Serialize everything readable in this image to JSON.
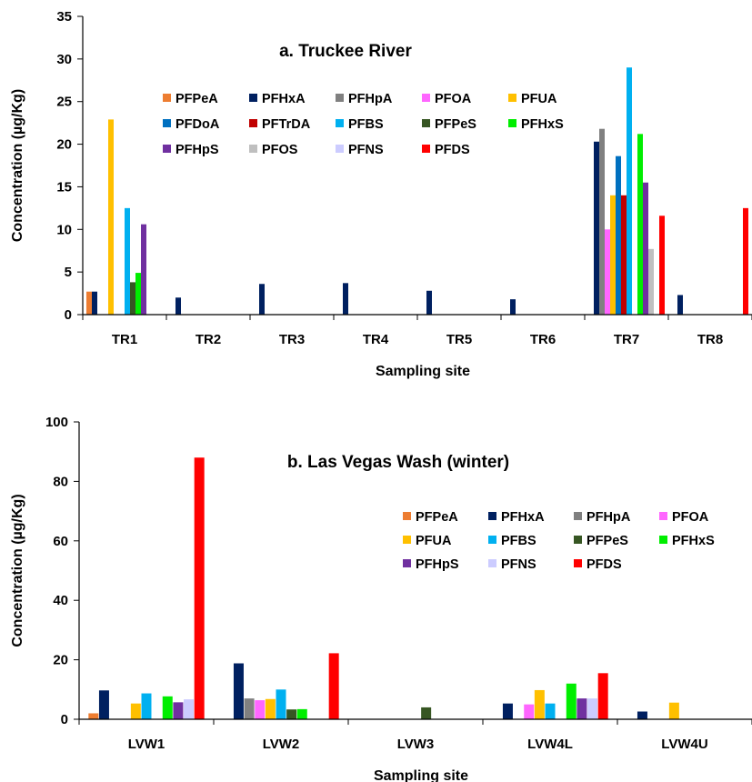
{
  "colors": {
    "PFPeA": "#ED7D31",
    "PFHxA": "#002060",
    "PFHpA": "#808080",
    "PFOA": "#FF66FF",
    "PFUA": "#FFC000",
    "PFDoA": "#0070C0",
    "PFTrDA": "#C00000",
    "PFBS": "#00B0F0",
    "PFPeS": "#375623",
    "PFHxS": "#00EE00",
    "PFHpS": "#7030A0",
    "PFOS": "#BFBFBF",
    "PFNS": "#CCCCFF",
    "PFDS": "#FF0000"
  },
  "chart_data": [
    {
      "type": "bar",
      "title": "a. Truckee River",
      "xlabel": "Sampling site",
      "ylabel": "Concentration (µg/Kg)",
      "ylim": [
        0,
        35
      ],
      "yticks": [
        0,
        5,
        10,
        15,
        20,
        25,
        30,
        35
      ],
      "grid": false,
      "legend_position": "top-center",
      "categories": [
        "TR1",
        "TR2",
        "TR3",
        "TR4",
        "TR5",
        "TR6",
        "TR7",
        "TR8"
      ],
      "series": [
        {
          "name": "PFPeA",
          "values": [
            2.7,
            0,
            0,
            0,
            0,
            0,
            0,
            0
          ]
        },
        {
          "name": "PFHxA",
          "values": [
            2.7,
            2.0,
            3.6,
            3.7,
            2.8,
            1.8,
            20.3,
            2.3
          ]
        },
        {
          "name": "PFHpA",
          "values": [
            0,
            0,
            0,
            0,
            0,
            0,
            21.8,
            0
          ]
        },
        {
          "name": "PFOA",
          "values": [
            0,
            0,
            0,
            0,
            0,
            0,
            10.0,
            0
          ]
        },
        {
          "name": "PFUA",
          "values": [
            22.9,
            0,
            0,
            0,
            0,
            0,
            14.0,
            0
          ]
        },
        {
          "name": "PFDoA",
          "values": [
            0,
            0,
            0,
            0,
            0,
            0,
            18.6,
            0
          ]
        },
        {
          "name": "PFTrDA",
          "values": [
            0,
            0,
            0,
            0,
            0,
            0,
            14.0,
            0
          ]
        },
        {
          "name": "PFBS",
          "values": [
            12.5,
            0,
            0,
            0,
            0,
            0,
            29.0,
            0
          ]
        },
        {
          "name": "PFPeS",
          "values": [
            3.8,
            0,
            0,
            0,
            0,
            0,
            0,
            0
          ]
        },
        {
          "name": "PFHxS",
          "values": [
            4.9,
            0,
            0,
            0,
            0,
            0,
            21.2,
            0
          ]
        },
        {
          "name": "PFHpS",
          "values": [
            10.6,
            0,
            0,
            0,
            0,
            0,
            15.5,
            0
          ]
        },
        {
          "name": "PFOS",
          "values": [
            0,
            0,
            0,
            0,
            0,
            0,
            7.7,
            0
          ]
        },
        {
          "name": "PFNS",
          "values": [
            0,
            0,
            0,
            0,
            0,
            0,
            0,
            0
          ]
        },
        {
          "name": "PFDS",
          "values": [
            0,
            0,
            0,
            0,
            0,
            0,
            11.6,
            12.5
          ]
        }
      ]
    },
    {
      "type": "bar",
      "title": "b. Las Vegas Wash (winter)",
      "xlabel": "Sampling site",
      "ylabel": "Concentration (µg/Kg)",
      "ylim": [
        0,
        100
      ],
      "yticks": [
        0,
        20,
        40,
        60,
        80,
        100
      ],
      "grid": false,
      "legend_position": "right",
      "categories": [
        "LVW1",
        "LVW2",
        "LVW3",
        "LVW4L",
        "LVW4U"
      ],
      "series": [
        {
          "name": "PFPeA",
          "values": [
            2.0,
            0,
            0,
            0,
            0
          ]
        },
        {
          "name": "PFHxA",
          "values": [
            9.7,
            18.8,
            0,
            5.3,
            2.6
          ]
        },
        {
          "name": "PFHpA",
          "values": [
            0,
            7.0,
            0,
            0,
            0
          ]
        },
        {
          "name": "PFOA",
          "values": [
            0,
            6.4,
            0,
            5.0,
            0
          ]
        },
        {
          "name": "PFUA",
          "values": [
            5.3,
            6.8,
            0,
            9.8,
            5.6
          ]
        },
        {
          "name": "PFBS",
          "values": [
            8.7,
            10.0,
            0,
            5.3,
            0
          ]
        },
        {
          "name": "PFPeS",
          "values": [
            0,
            3.3,
            4.0,
            0,
            0
          ]
        },
        {
          "name": "PFHxS",
          "values": [
            7.7,
            3.4,
            0,
            12.0,
            0
          ]
        },
        {
          "name": "PFHpS",
          "values": [
            5.7,
            0,
            0,
            7.0,
            0
          ]
        },
        {
          "name": "PFNS",
          "values": [
            6.7,
            0,
            0,
            7.0,
            0
          ]
        },
        {
          "name": "PFDS",
          "values": [
            88.0,
            22.2,
            0,
            15.5,
            0
          ]
        }
      ]
    }
  ]
}
